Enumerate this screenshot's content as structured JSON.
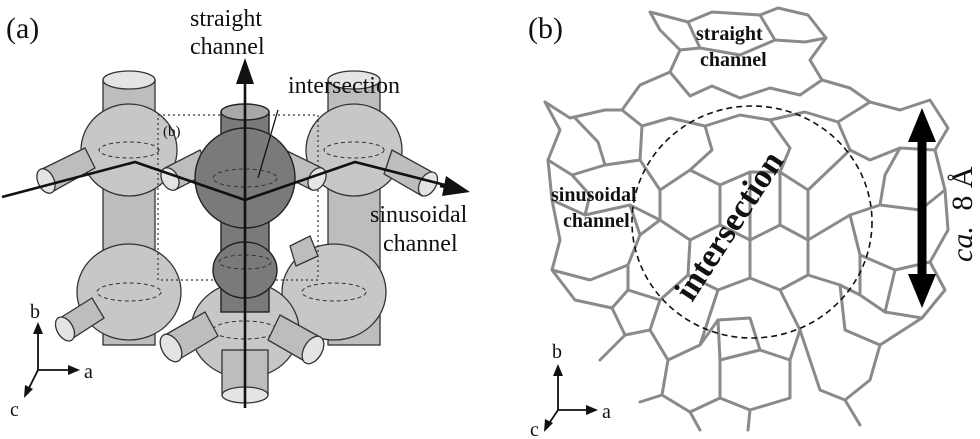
{
  "panel_a": {
    "label": "(a)",
    "straight_channel_line1": "straight",
    "straight_channel_line2": "channel",
    "intersection": "intersection",
    "sinusoidal_line1": "sinusoidal",
    "sinusoidal_line2": "channel",
    "cell_marker": "(b)",
    "axis_b": "b",
    "axis_a": "a",
    "axis_c": "c"
  },
  "panel_b": {
    "label": "(b)",
    "straight_channel_line1": "straight",
    "straight_channel_line2": "channel",
    "sinusoidal_line1": "sinusoidal",
    "sinusoidal_line2": "channel",
    "intersection": "intersection",
    "dimension_prefix": "ca.",
    "dimension_value": "8 Å",
    "axis_b": "b",
    "axis_a": "a",
    "axis_c": "c"
  }
}
